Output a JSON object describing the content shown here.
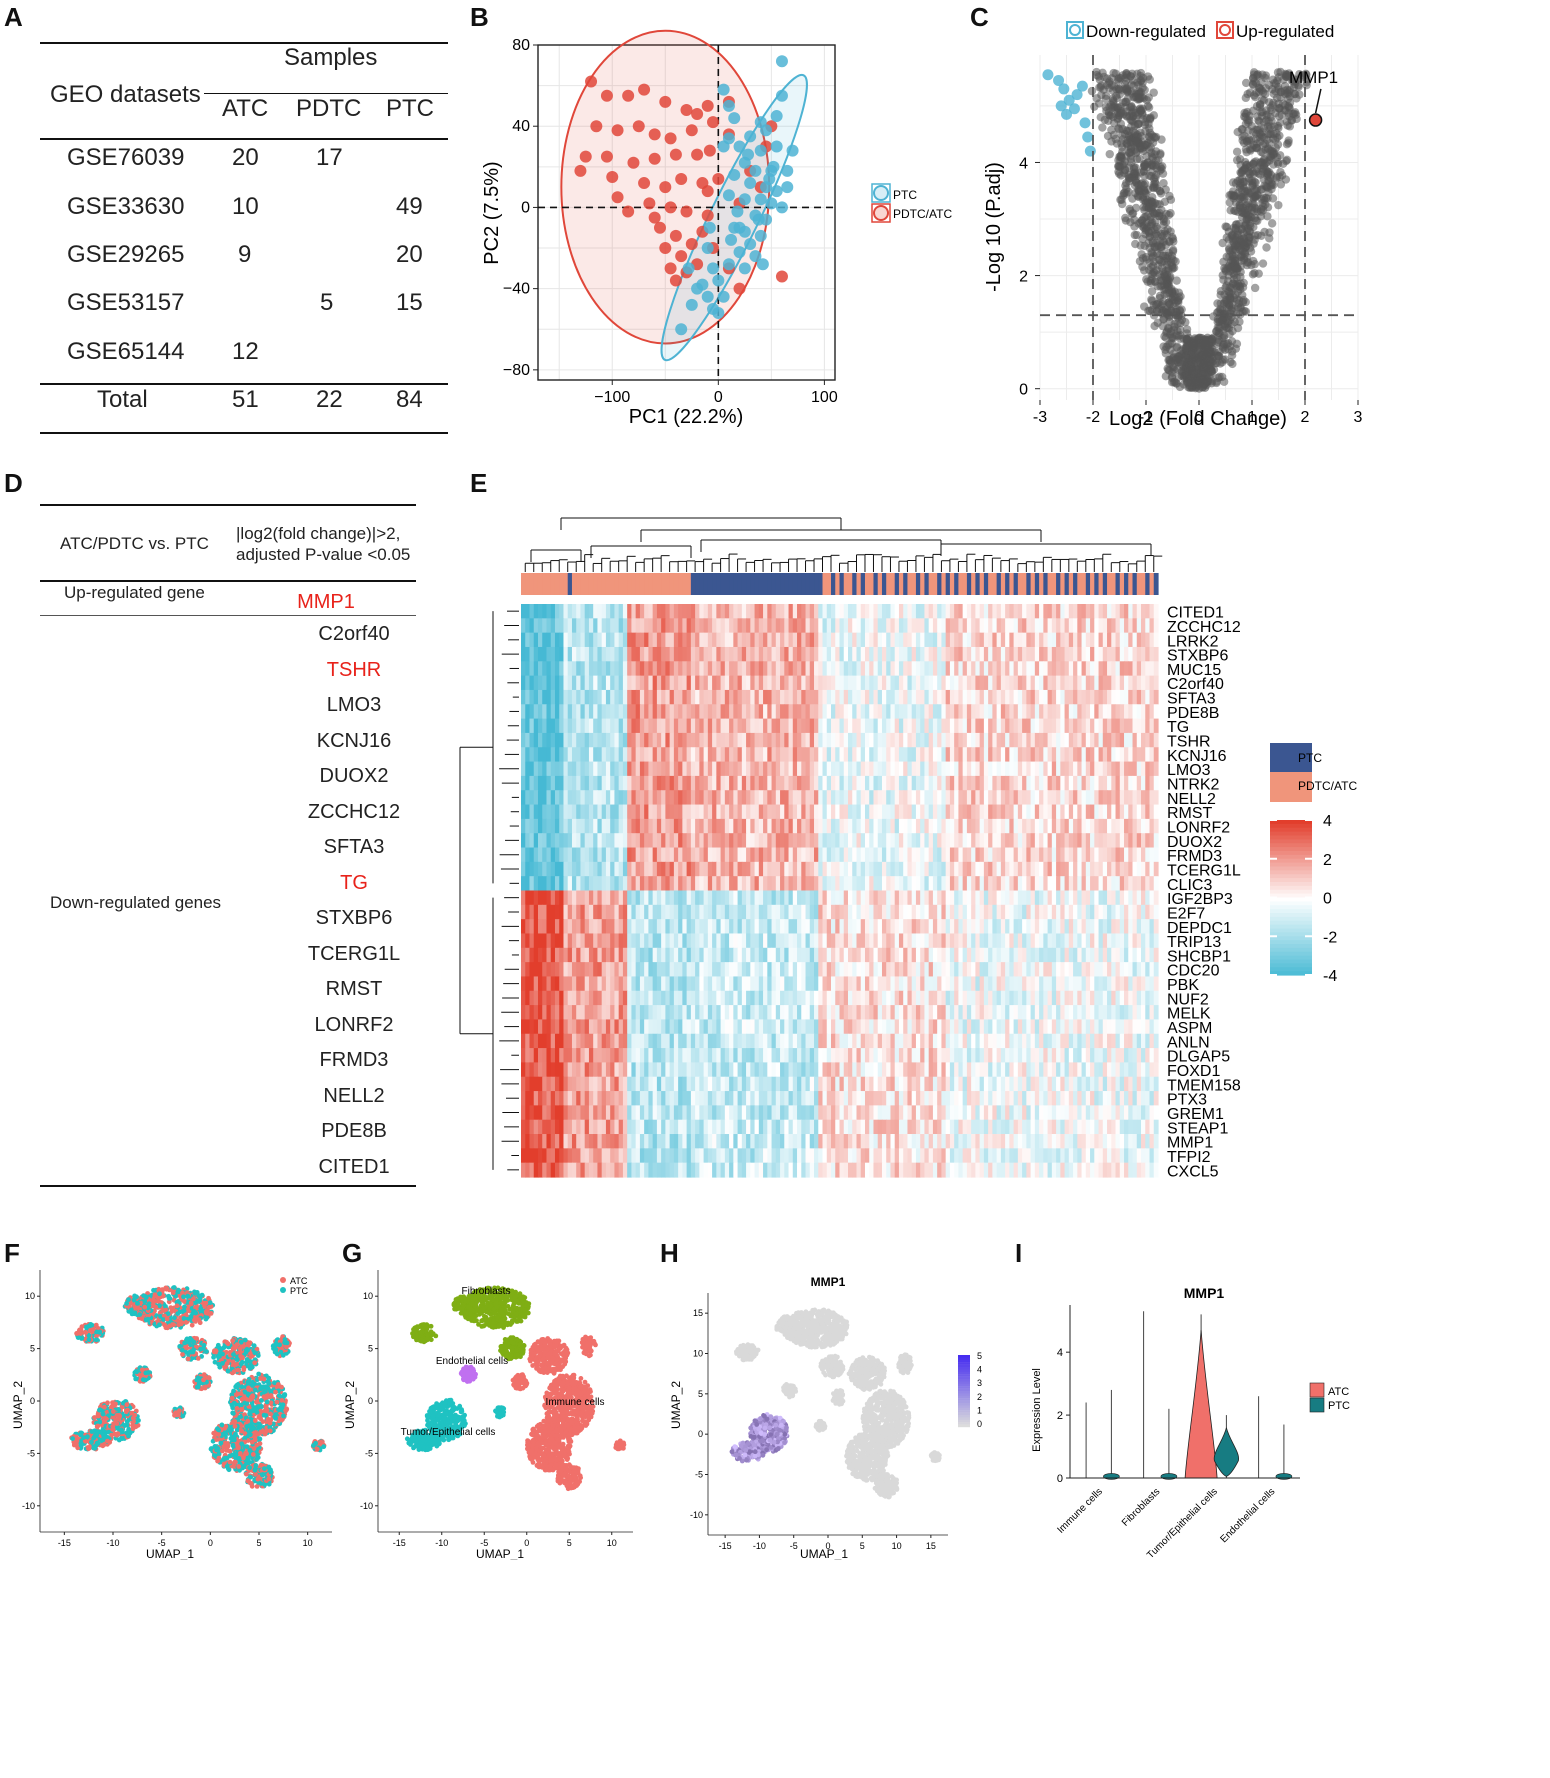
{
  "panels": {
    "A": "A",
    "B": "B",
    "C": "C",
    "D": "D",
    "E": "E",
    "F": "F",
    "G": "G",
    "H": "H",
    "I": "I"
  },
  "tableA": {
    "samples_header": "Samples",
    "geo_header": "GEO datasets",
    "col_headers": [
      "ATC",
      "PDTC",
      "PTC"
    ],
    "rows": [
      {
        "dataset": "GSE76039",
        "atc": "20",
        "pdtc": "17",
        "ptc": ""
      },
      {
        "dataset": "GSE33630",
        "atc": "10",
        "pdtc": "",
        "ptc": "49"
      },
      {
        "dataset": "GSE29265",
        "atc": "9",
        "pdtc": "",
        "ptc": "20"
      },
      {
        "dataset": "GSE53157",
        "atc": "",
        "pdtc": "5",
        "ptc": "15"
      },
      {
        "dataset": "GSE65144",
        "atc": "12",
        "pdtc": "",
        "ptc": ""
      }
    ],
    "total": {
      "label": "Total",
      "atc": "51",
      "pdtc": "22",
      "ptc": "84"
    }
  },
  "chart_data": [
    {
      "id": "B",
      "type": "scatter",
      "xlabel": "PC1 (22.2%)",
      "ylabel": "PC2 (7.5%)",
      "xlim": [
        -170,
        110
      ],
      "ylim": [
        -85,
        80
      ],
      "xticks": [
        "−100",
        "0",
        "100"
      ],
      "yticks": [
        "80",
        "40",
        "0",
        "−40",
        "−80"
      ],
      "legend": [
        "PTC",
        "PDTC/ATC"
      ],
      "colors": {
        "PTC": "#4eb3d3",
        "PDTC/ATC": "#e0473a"
      },
      "series": [
        {
          "name": "PDTC/ATC",
          "points": [
            [
              -120,
              62
            ],
            [
              -105,
              55
            ],
            [
              -85,
              55
            ],
            [
              -70,
              58
            ],
            [
              -50,
              52
            ],
            [
              -30,
              48
            ],
            [
              -20,
              46
            ],
            [
              -10,
              50
            ],
            [
              10,
              52
            ],
            [
              -115,
              40
            ],
            [
              -95,
              38
            ],
            [
              -75,
              40
            ],
            [
              -60,
              36
            ],
            [
              -45,
              34
            ],
            [
              -25,
              38
            ],
            [
              -5,
              42
            ],
            [
              10,
              36
            ],
            [
              -125,
              25
            ],
            [
              -105,
              25
            ],
            [
              -80,
              22
            ],
            [
              -60,
              24
            ],
            [
              -40,
              26
            ],
            [
              -20,
              26
            ],
            [
              -8,
              28
            ],
            [
              -130,
              18
            ],
            [
              -100,
              15
            ],
            [
              -70,
              12
            ],
            [
              -50,
              10
            ],
            [
              -35,
              14
            ],
            [
              -15,
              12
            ],
            [
              0,
              14
            ],
            [
              -95,
              5
            ],
            [
              -65,
              2
            ],
            [
              -45,
              0
            ],
            [
              -30,
              -2
            ],
            [
              -10,
              -4
            ],
            [
              -55,
              -10
            ],
            [
              -40,
              -14
            ],
            [
              -25,
              -18
            ],
            [
              -50,
              -20
            ],
            [
              -35,
              -24
            ],
            [
              -45,
              -30
            ],
            [
              -30,
              -32
            ],
            [
              -20,
              -28
            ],
            [
              -40,
              -36
            ],
            [
              -5,
              -20
            ],
            [
              10,
              -30
            ],
            [
              20,
              -40
            ],
            [
              -60,
              -5
            ],
            [
              -85,
              -2
            ],
            [
              30,
              18
            ],
            [
              45,
              30
            ],
            [
              50,
              40
            ],
            [
              60,
              -34
            ],
            [
              40,
              10
            ],
            [
              -15,
              -12
            ],
            [
              -10,
              8
            ],
            [
              20,
              2
            ]
          ]
        },
        {
          "name": "PTC",
          "points": [
            [
              60,
              72
            ],
            [
              5,
              58
            ],
            [
              10,
              50
            ],
            [
              60,
              55
            ],
            [
              55,
              45
            ],
            [
              40,
              42
            ],
            [
              45,
              38
            ],
            [
              30,
              35
            ],
            [
              20,
              30
            ],
            [
              10,
              34
            ],
            [
              5,
              30
            ],
            [
              40,
              28
            ],
            [
              55,
              30
            ],
            [
              70,
              28
            ],
            [
              25,
              22
            ],
            [
              35,
              18
            ],
            [
              50,
              18
            ],
            [
              65,
              18
            ],
            [
              15,
              16
            ],
            [
              30,
              12
            ],
            [
              45,
              10
            ],
            [
              55,
              8
            ],
            [
              10,
              6
            ],
            [
              25,
              4
            ],
            [
              40,
              4
            ],
            [
              50,
              2
            ],
            [
              60,
              0
            ],
            [
              35,
              -4
            ],
            [
              45,
              -6
            ],
            [
              15,
              -10
            ],
            [
              25,
              -12
            ],
            [
              40,
              -14
            ],
            [
              30,
              -18
            ],
            [
              20,
              -22
            ],
            [
              35,
              -24
            ],
            [
              10,
              -28
            ],
            [
              -5,
              -30
            ],
            [
              0,
              -36
            ],
            [
              -20,
              -40
            ],
            [
              -10,
              -44
            ],
            [
              -25,
              -48
            ],
            [
              -5,
              -50
            ],
            [
              0,
              -52
            ],
            [
              -35,
              -60
            ],
            [
              -15,
              -38
            ],
            [
              20,
              -10
            ],
            [
              -10,
              -20
            ],
            [
              25,
              -30
            ],
            [
              38,
              -6
            ],
            [
              48,
              14
            ],
            [
              28,
              26
            ],
            [
              15,
              44
            ],
            [
              65,
              10
            ],
            [
              18,
              -2
            ],
            [
              -8,
              -10
            ],
            [
              5,
              -44
            ],
            [
              -28,
              -30
            ],
            [
              12,
              -16
            ],
            [
              42,
              -28
            ],
            [
              52,
              20
            ]
          ]
        }
      ]
    },
    {
      "id": "C",
      "type": "scatter",
      "xlabel": "Log2 (Fold Change)",
      "ylabel": "-Log 10 (P.adj)",
      "xlim": [
        -3,
        3
      ],
      "ylim": [
        -0.2,
        5.9
      ],
      "xticks": [
        "-3",
        "-2",
        "-1",
        "0",
        "1",
        "2",
        "3"
      ],
      "yticks": [
        "0",
        "2",
        "4"
      ],
      "legend": [
        "Down-regulated",
        "Up-regulated"
      ],
      "annotation": "MMP1",
      "highlight": {
        "name": "MMP1",
        "x": 2.2,
        "y": 4.75
      },
      "thresholds": {
        "x": [
          -2,
          2
        ],
        "y": 1.3
      }
    },
    {
      "id": "E",
      "type": "heatmap",
      "genes": [
        "CITED1",
        "ZCCHC12",
        "LRRK2",
        "STXBP6",
        "MUC15",
        "C2orf40",
        "SFTA3",
        "PDE8B",
        "TG",
        "TSHR",
        "KCNJ16",
        "LMO3",
        "NTRK2",
        "NELL2",
        "RMST",
        "LONRF2",
        "DUOX2",
        "FRMD3",
        "TCERG1L",
        "CLIC3",
        "IGF2BP3",
        "E2F7",
        "DEPDC1",
        "TRIP13",
        "SHCBP1",
        "CDC20",
        "PBK",
        "NUF2",
        "MELK",
        "ASPM",
        "ANLN",
        "DLGAP5",
        "FOXD1",
        "TMEM158",
        "PTX3",
        "GREM1",
        "STEAP1",
        "MMP1",
        "TFPI2",
        "CXCL5"
      ],
      "legend": [
        "PTC",
        "PDTC/ATC"
      ],
      "colorbar_ticks": [
        "4",
        "2",
        "0",
        "-2",
        "-4"
      ]
    },
    {
      "id": "F",
      "type": "scatter",
      "xlabel": "UMAP_1",
      "ylabel": "UMAP_2",
      "xticks": [
        "-15",
        "-10",
        "-5",
        "0",
        "5",
        "10"
      ],
      "yticks": [
        "10",
        "5",
        "0",
        "-5",
        "-10"
      ],
      "legend": [
        "ATC",
        "PTC"
      ]
    },
    {
      "id": "G",
      "type": "scatter",
      "xlabel": "UMAP_1",
      "ylabel": "UMAP_2",
      "xticks": [
        "-15",
        "-10",
        "-5",
        "0",
        "5",
        "10"
      ],
      "yticks": [
        "10",
        "5",
        "0",
        "-5",
        "-10"
      ],
      "annotations": [
        "Fibroblasts",
        "Endothelial cells",
        "Immune cells",
        "Tumor/Epithelial cells"
      ]
    },
    {
      "id": "H",
      "type": "scatter",
      "title": "MMP1",
      "xlabel": "UMAP_1",
      "ylabel": "UMAP_2",
      "xticks": [
        "-15",
        "-10",
        "-5",
        "0",
        "5",
        "10",
        "15"
      ],
      "yticks": [
        "15",
        "10",
        "5",
        "0",
        "-5",
        "-10"
      ],
      "colorbar_ticks": [
        "5",
        "4",
        "3",
        "2",
        "1",
        "0"
      ]
    },
    {
      "id": "I",
      "type": "violin",
      "title": "MMP1",
      "ylabel": "Expression Level",
      "categories": [
        "Immune cells",
        "Fibroblasts",
        "Tumor/Epithelial cells",
        "Endothelial cells"
      ],
      "yticks": [
        "4",
        "2",
        "0"
      ],
      "legend": [
        "ATC",
        "PTC"
      ],
      "series": [
        {
          "name": "ATC",
          "max": [
            2.4,
            5.3,
            5.2,
            2.6
          ]
        },
        {
          "name": "PTC",
          "max": [
            2.8,
            2.2,
            2.0,
            1.7
          ]
        }
      ]
    }
  ],
  "tableD": {
    "h1": "ATC/PDTC vs. PTC",
    "h2a": "|log2(fold change)|>2,",
    "h2b": "adjusted P-value <0.05",
    "up_label": "Up-regulated gene",
    "up_gene": "MMP1",
    "down_label": "Down-regulated genes",
    "down_genes": [
      "C2orf40",
      "TSHR",
      "LMO3",
      "KCNJ16",
      "DUOX2",
      "ZCCHC12",
      "SFTA3",
      "TG",
      "STXBP6",
      "TCERG1L",
      "RMST",
      "LONRF2",
      "FRMD3",
      "NELL2",
      "PDE8B",
      "CITED1"
    ]
  },
  "colors": {
    "red": "#e0473a",
    "blue": "#4eb3d3",
    "navy": "#3b5691",
    "salmon": "#f0957b",
    "green": "#7fae14",
    "teal": "#1fc2c2",
    "purple": "#c070f0",
    "coral": "#f0706a"
  }
}
